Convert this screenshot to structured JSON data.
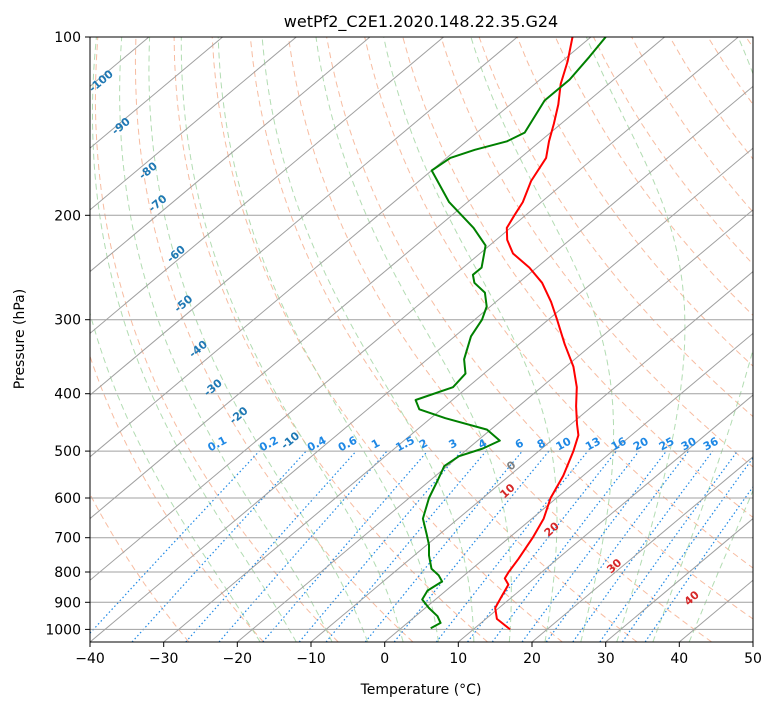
{
  "chart_data": {
    "type": "skew-t",
    "title": "wetPf2_C2E1.2020.148.22.35.G24",
    "xlabel": "Temperature (°C)",
    "ylabel": "Pressure (hPa)",
    "xlim": [
      -40,
      50
    ],
    "ylim": [
      1050,
      100
    ],
    "x_ticks": [
      "−40",
      "−30",
      "−20",
      "−10",
      "0",
      "10",
      "20",
      "30",
      "40",
      "50"
    ],
    "y_ticks": [
      "100",
      "200",
      "300",
      "400",
      "500",
      "600",
      "700",
      "800",
      "900",
      "1000"
    ],
    "grid": true,
    "colors": {
      "temperature": "#ff0000",
      "dewpoint": "#008000",
      "isotherm": "#a0a0a0",
      "dry_adiabat": "#f4a582",
      "moist_adiabat": "#9fd39f",
      "mixing_ratio": "#1e88e5",
      "isotherm_label": "#1f78b4",
      "adiabat_label": "#d62728"
    },
    "series": [
      {
        "name": "Temperature",
        "points": [
          {
            "p": 1000,
            "t": 15.0
          },
          {
            "p": 960,
            "t": 11.5
          },
          {
            "p": 920,
            "t": 9.5
          },
          {
            "p": 880,
            "t": 8.5
          },
          {
            "p": 840,
            "t": 7.5
          },
          {
            "p": 820,
            "t": 6.0
          },
          {
            "p": 800,
            "t": 5.5
          },
          {
            "p": 760,
            "t": 4.7
          },
          {
            "p": 700,
            "t": 3.2
          },
          {
            "p": 650,
            "t": 1.6
          },
          {
            "p": 600,
            "t": -0.8
          },
          {
            "p": 550,
            "t": -2.7
          },
          {
            "p": 500,
            "t": -5.3
          },
          {
            "p": 470,
            "t": -7.2
          },
          {
            "p": 450,
            "t": -9.2
          },
          {
            "p": 420,
            "t": -12.2
          },
          {
            "p": 390,
            "t": -15.2
          },
          {
            "p": 360,
            "t": -19.0
          },
          {
            "p": 330,
            "t": -23.8
          },
          {
            "p": 300,
            "t": -28.8
          },
          {
            "p": 280,
            "t": -32.5
          },
          {
            "p": 260,
            "t": -36.8
          },
          {
            "p": 245,
            "t": -41.0
          },
          {
            "p": 232,
            "t": -45.5
          },
          {
            "p": 220,
            "t": -48.5
          },
          {
            "p": 210,
            "t": -50.5
          },
          {
            "p": 200,
            "t": -51.5
          },
          {
            "p": 190,
            "t": -52.5
          },
          {
            "p": 175,
            "t": -54.8
          },
          {
            "p": 160,
            "t": -56.5
          },
          {
            "p": 150,
            "t": -58.8
          },
          {
            "p": 140,
            "t": -61.0
          },
          {
            "p": 130,
            "t": -63.5
          },
          {
            "p": 120,
            "t": -66.5
          },
          {
            "p": 110,
            "t": -69.2
          },
          {
            "p": 100,
            "t": -72.5
          }
        ]
      },
      {
        "name": "Dewpoint",
        "points": [
          {
            "p": 995,
            "t": 4.0
          },
          {
            "p": 975,
            "t": 4.5
          },
          {
            "p": 950,
            "t": 3.0
          },
          {
            "p": 920,
            "t": 0.5
          },
          {
            "p": 890,
            "t": -1.8
          },
          {
            "p": 860,
            "t": -2.5
          },
          {
            "p": 830,
            "t": -2.0
          },
          {
            "p": 810,
            "t": -3.5
          },
          {
            "p": 790,
            "t": -5.5
          },
          {
            "p": 750,
            "t": -8.0
          },
          {
            "p": 720,
            "t": -9.7
          },
          {
            "p": 690,
            "t": -11.8
          },
          {
            "p": 650,
            "t": -14.8
          },
          {
            "p": 600,
            "t": -17.3
          },
          {
            "p": 560,
            "t": -19.0
          },
          {
            "p": 530,
            "t": -20.4
          },
          {
            "p": 510,
            "t": -20.0
          },
          {
            "p": 495,
            "t": -18.0
          },
          {
            "p": 480,
            "t": -17.0
          },
          {
            "p": 460,
            "t": -20.5
          },
          {
            "p": 440,
            "t": -28.0
          },
          {
            "p": 425,
            "t": -33.0
          },
          {
            "p": 410,
            "t": -35.0
          },
          {
            "p": 390,
            "t": -32.0
          },
          {
            "p": 370,
            "t": -32.5
          },
          {
            "p": 350,
            "t": -35.0
          },
          {
            "p": 320,
            "t": -37.8
          },
          {
            "p": 300,
            "t": -39.0
          },
          {
            "p": 285,
            "t": -40.5
          },
          {
            "p": 270,
            "t": -43.0
          },
          {
            "p": 260,
            "t": -46.0
          },
          {
            "p": 252,
            "t": -47.5
          },
          {
            "p": 245,
            "t": -47.5
          },
          {
            "p": 225,
            "t": -50.5
          },
          {
            "p": 210,
            "t": -55.0
          },
          {
            "p": 190,
            "t": -62.5
          },
          {
            "p": 175,
            "t": -67.5
          },
          {
            "p": 168,
            "t": -70.0
          },
          {
            "p": 160,
            "t": -69.5
          },
          {
            "p": 155,
            "t": -67.5
          },
          {
            "p": 150,
            "t": -64.5
          },
          {
            "p": 145,
            "t": -63.5
          },
          {
            "p": 138,
            "t": -64.5
          },
          {
            "p": 128,
            "t": -66.0
          },
          {
            "p": 118,
            "t": -66.0
          },
          {
            "p": 108,
            "t": -67.0
          },
          {
            "p": 100,
            "t": -68.0
          }
        ]
      }
    ],
    "isotherm_labels": [
      {
        "text": "-100",
        "x": -38.2,
        "p": 120
      },
      {
        "text": "-90",
        "x": -35.5,
        "p": 143
      },
      {
        "text": "-80",
        "x": -31.8,
        "p": 170
      },
      {
        "text": "-70",
        "x": -30.5,
        "p": 193
      },
      {
        "text": "-60",
        "x": -28.0,
        "p": 235
      },
      {
        "text": "-50",
        "x": -27.0,
        "p": 285
      },
      {
        "text": "-40",
        "x": -25.0,
        "p": 340
      },
      {
        "text": "-30",
        "x": -23.0,
        "p": 395
      },
      {
        "text": "-20",
        "x": -19.5,
        "p": 440
      },
      {
        "text": "-10",
        "x": -12.5,
        "p": 485
      },
      {
        "text": "0",
        "x": 17.5,
        "p": 535
      }
    ],
    "dry_adiabat_labels": [
      {
        "text": "10",
        "x": 17.0,
        "p": 590
      },
      {
        "text": "20",
        "x": 23.0,
        "p": 685
      },
      {
        "text": "30",
        "x": 31.5,
        "p": 790
      },
      {
        "text": "40",
        "x": 42.0,
        "p": 895
      }
    ],
    "mixing_ratio_labels": [
      {
        "text": "0.1",
        "x": -22.5
      },
      {
        "text": "0.2",
        "x": -15.5
      },
      {
        "text": "0.4",
        "x": -9.0
      },
      {
        "text": "0.6",
        "x": -4.8
      },
      {
        "text": "1",
        "x": -1.0
      },
      {
        "text": "1.5",
        "x": 3.0
      },
      {
        "text": "2",
        "x": 5.5
      },
      {
        "text": "3",
        "x": 9.5
      },
      {
        "text": "4",
        "x": 13.5
      },
      {
        "text": "6",
        "x": 18.5
      },
      {
        "text": "8",
        "x": 21.5
      },
      {
        "text": "10",
        "x": 24.5
      },
      {
        "text": "13",
        "x": 28.5
      },
      {
        "text": "16",
        "x": 32.0
      },
      {
        "text": "20",
        "x": 35.0
      },
      {
        "text": "25",
        "x": 38.5
      },
      {
        "text": "30",
        "x": 41.5
      },
      {
        "text": "36",
        "x": 44.5
      }
    ]
  }
}
